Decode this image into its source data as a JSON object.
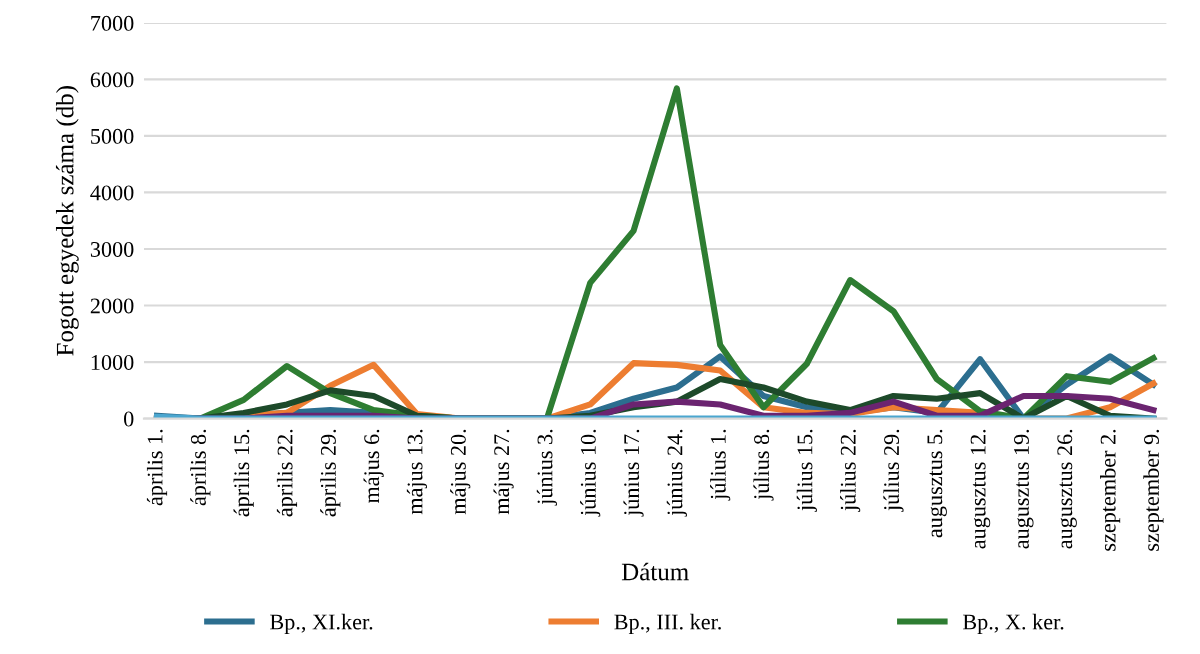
{
  "chart_data": {
    "type": "line",
    "xlabel": "Dátum",
    "ylabel": "Fogott egyedek száma (db)",
    "categories": [
      "április 1.",
      "április 8.",
      "április 15.",
      "április 22.",
      "április 29.",
      "május 6.",
      "május 13.",
      "május 20.",
      "május 27.",
      "június 3.",
      "június 10.",
      "június 17.",
      "június 24.",
      "július 1.",
      "július 8.",
      "július 15.",
      "július 22.",
      "július 29.",
      "augusztus 5.",
      "augusztus 12.",
      "augusztus 19.",
      "augusztus 26.",
      "szeptember 2.",
      "szeptember 9."
    ],
    "series": [
      {
        "name": "Bp., XI.ker.",
        "color": "#2c6e8f",
        "values": [
          50,
          0,
          50,
          100,
          150,
          100,
          50,
          0,
          0,
          0,
          100,
          350,
          550,
          1100,
          400,
          200,
          100,
          200,
          100,
          1050,
          0,
          600,
          1100,
          600
        ]
      },
      {
        "name": "Bp., III. ker.",
        "color": "#ed7d31",
        "values": [
          0,
          0,
          50,
          100,
          580,
          950,
          80,
          0,
          0,
          0,
          250,
          980,
          950,
          850,
          200,
          100,
          80,
          200,
          150,
          100,
          0,
          0,
          200,
          620
        ]
      },
      {
        "name": "Bp., X. ker.",
        "color": "#2e7d32",
        "values": [
          0,
          0,
          330,
          930,
          450,
          150,
          50,
          0,
          0,
          0,
          2400,
          3320,
          5840,
          1300,
          200,
          970,
          2450,
          1900,
          700,
          130,
          0,
          750,
          650,
          1070
        ]
      },
      {
        "color": "#1d4a2a",
        "values": [
          0,
          0,
          100,
          250,
          500,
          400,
          50,
          0,
          0,
          0,
          50,
          200,
          300,
          700,
          550,
          300,
          150,
          400,
          350,
          450,
          0,
          400,
          50,
          0
        ]
      },
      {
        "color": "#6b2470",
        "values": [
          0,
          0,
          0,
          50,
          50,
          50,
          0,
          0,
          0,
          0,
          0,
          250,
          300,
          250,
          50,
          50,
          100,
          300,
          50,
          50,
          400,
          400,
          350,
          150
        ]
      },
      {
        "color": "#4ba6cf",
        "values": [
          30,
          0,
          0,
          0,
          0,
          0,
          0,
          0,
          0,
          0,
          0,
          0,
          0,
          0,
          0,
          0,
          0,
          0,
          0,
          0,
          0,
          0,
          0,
          0
        ]
      }
    ],
    "ylim": [
      0,
      7000
    ],
    "yticks": [
      0,
      1000,
      2000,
      3000,
      4000,
      5000,
      6000,
      7000
    ],
    "grid": "y",
    "legend": "bottom",
    "line_style": "solid"
  }
}
